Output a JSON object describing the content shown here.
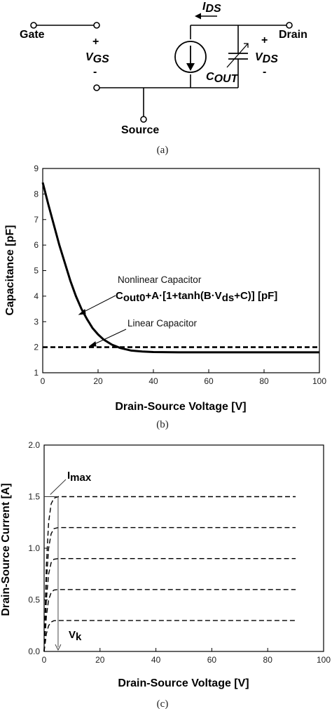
{
  "panel_a": {
    "gate_label": "Gate",
    "drain_label": "Drain",
    "source_label": "Source",
    "ids_label": "I",
    "ids_sub": "DS",
    "vgs_label": "V",
    "vgs_sub": "GS",
    "vds_label": "V",
    "vds_sub": "DS",
    "cout_label": "C",
    "cout_sub": "OUT",
    "plus": "+",
    "minus": "-",
    "caption": "(a)"
  },
  "panel_b": {
    "caption": "(b)",
    "annotation_nonlinear": "Nonlinear Capacitor",
    "formula": {
      "t1": "C",
      "t1_sub": "out0",
      "t2": "+A·[1+tanh(B·V",
      "t2_sub": "ds",
      "t3": "+C)] [pF]"
    },
    "annotation_linear": "Linear Capacitor"
  },
  "panel_c": {
    "caption": "(c)",
    "imax_main": "I",
    "imax_sub": "max",
    "vk_main": "V",
    "vk_sub": "k"
  },
  "chart_data": [
    {
      "type": "line",
      "xlabel": "Drain-Source Voltage [V]",
      "ylabel": "Capacitance [pF]",
      "xlim": [
        0,
        100
      ],
      "ylim": [
        1,
        9
      ],
      "xticks": [
        "0",
        "20",
        "40",
        "60",
        "80",
        "100"
      ],
      "yticks": [
        "1",
        "2",
        "3",
        "4",
        "5",
        "6",
        "7",
        "8",
        "9"
      ],
      "series": [
        {
          "style": "solid",
          "x": [
            0,
            2,
            4,
            6,
            8,
            10,
            12,
            14,
            16,
            18,
            20,
            22,
            25,
            28,
            32,
            36,
            40,
            50,
            60,
            70,
            80,
            90,
            100
          ],
          "y": [
            8.45,
            7.6,
            6.8,
            6.0,
            5.3,
            4.6,
            4.0,
            3.5,
            3.1,
            2.75,
            2.5,
            2.3,
            2.1,
            1.97,
            1.87,
            1.83,
            1.81,
            1.8,
            1.8,
            1.8,
            1.8,
            1.8,
            1.8
          ]
        },
        {
          "style": "dashed",
          "x": [
            0,
            100
          ],
          "y": [
            2.0,
            2.0
          ]
        }
      ]
    },
    {
      "type": "line",
      "xlabel": "Drain-Source Voltage [V]",
      "ylabel": "Drain-Source Current [A]",
      "xlim": [
        0,
        100
      ],
      "ylim": [
        0.0,
        2.0
      ],
      "xticks": [
        "0",
        "20",
        "40",
        "60",
        "80",
        "100"
      ],
      "yticks": [
        "0.0",
        "0.5",
        "1.0",
        "1.5",
        "2.0"
      ],
      "series": [
        {
          "style": "dashed",
          "x": [
            0,
            0.8,
            1.6,
            2.5,
            3.5,
            5,
            90
          ],
          "y": [
            0,
            0.17,
            0.25,
            0.285,
            0.298,
            0.3,
            0.3
          ]
        },
        {
          "style": "dashed",
          "x": [
            0,
            0.8,
            1.6,
            2.5,
            3.5,
            5,
            90
          ],
          "y": [
            0,
            0.34,
            0.5,
            0.57,
            0.595,
            0.6,
            0.6
          ]
        },
        {
          "style": "dashed",
          "x": [
            0,
            0.8,
            1.6,
            2.5,
            3.5,
            5,
            90
          ],
          "y": [
            0,
            0.5,
            0.75,
            0.86,
            0.893,
            0.9,
            0.9
          ]
        },
        {
          "style": "dashed",
          "x": [
            0,
            0.8,
            1.6,
            2.5,
            3.5,
            5,
            90
          ],
          "y": [
            0,
            0.67,
            1.0,
            1.14,
            1.19,
            1.2,
            1.2
          ]
        },
        {
          "style": "dashed",
          "x": [
            0,
            0.8,
            1.6,
            2.5,
            3.5,
            5,
            90
          ],
          "y": [
            0,
            0.84,
            1.25,
            1.43,
            1.485,
            1.5,
            1.5
          ]
        }
      ],
      "markers": {
        "imax": [
          5,
          1.5
        ],
        "vk": [
          5,
          0.0
        ]
      }
    }
  ],
  "colors": {
    "ink": "#000000",
    "caption": "#222222"
  }
}
